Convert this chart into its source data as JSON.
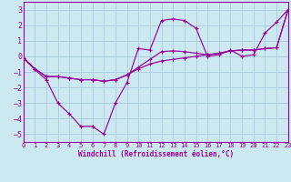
{
  "xlabel": "Windchill (Refroidissement éolien,°C)",
  "xlim": [
    0,
    23
  ],
  "ylim": [
    -5.5,
    3.5
  ],
  "yticks": [
    -5,
    -4,
    -3,
    -2,
    -1,
    0,
    1,
    2,
    3
  ],
  "xticks": [
    0,
    1,
    2,
    3,
    4,
    5,
    6,
    7,
    8,
    9,
    10,
    11,
    12,
    13,
    14,
    15,
    16,
    17,
    18,
    19,
    20,
    21,
    22,
    23
  ],
  "bg_color": "#cce8f0",
  "grid_color": "#aaccdd",
  "line_color": "#990099",
  "series": [
    {
      "x": [
        0,
        1,
        2,
        3,
        4,
        5,
        6,
        7,
        8,
        9,
        10,
        11,
        12,
        13,
        14,
        15,
        16,
        17,
        18,
        19,
        20,
        21,
        22,
        23
      ],
      "y": [
        -0.1,
        -0.85,
        -1.5,
        -3.0,
        -3.7,
        -4.5,
        -4.5,
        -5.0,
        -3.0,
        -1.7,
        0.5,
        0.4,
        2.3,
        2.4,
        2.3,
        1.8,
        0.0,
        0.1,
        0.4,
        0.0,
        0.1,
        1.5,
        2.2,
        3.0
      ]
    },
    {
      "x": [
        0,
        1,
        2,
        3,
        4,
        5,
        6,
        7,
        8,
        9,
        10,
        11,
        12,
        13,
        14,
        15,
        16,
        17,
        18,
        19,
        20,
        21,
        22,
        23
      ],
      "y": [
        -0.1,
        -0.8,
        -1.3,
        -1.3,
        -1.4,
        -1.5,
        -1.5,
        -1.6,
        -1.5,
        -1.2,
        -0.8,
        -0.5,
        -0.3,
        -0.2,
        -0.1,
        0.0,
        0.1,
        0.2,
        0.35,
        0.4,
        0.4,
        0.5,
        0.55,
        3.0
      ]
    },
    {
      "x": [
        0,
        1,
        2,
        3,
        4,
        5,
        6,
        7,
        8,
        9,
        10,
        11,
        12,
        13,
        14,
        15,
        16,
        17,
        18,
        19,
        20,
        21,
        22,
        23
      ],
      "y": [
        -0.1,
        -0.8,
        -1.3,
        -1.3,
        -1.4,
        -1.5,
        -1.5,
        -1.6,
        -1.5,
        -1.2,
        -0.7,
        -0.2,
        0.3,
        0.35,
        0.3,
        0.2,
        0.1,
        0.2,
        0.35,
        0.4,
        0.4,
        0.5,
        0.55,
        3.0
      ]
    }
  ],
  "xlabel_fontsize": 5.5,
  "ytick_fontsize": 6.0,
  "xtick_fontsize": 5.0
}
